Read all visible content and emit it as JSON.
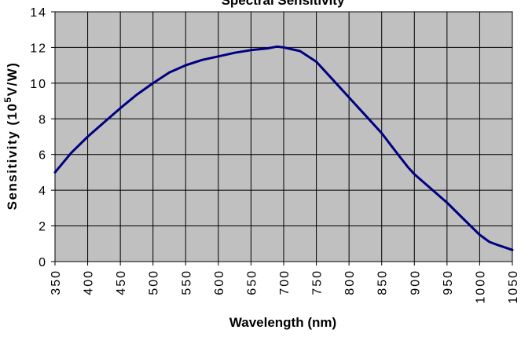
{
  "chart_data": {
    "type": "line",
    "title": "Spectral Sensitivity",
    "xlabel": "Wavelength (nm)",
    "ylabel_main": "Sensitivity (10",
    "ylabel_sup": "5",
    "ylabel_end": "V/W)",
    "xlim": [
      350,
      1050
    ],
    "ylim": [
      0,
      14
    ],
    "grid": true,
    "x_ticks": [
      "350",
      "400",
      "450",
      "500",
      "550",
      "600",
      "650",
      "700",
      "750",
      "800",
      "850",
      "900",
      "950",
      "1000",
      "1050"
    ],
    "y_ticks": [
      "0",
      "2",
      "4",
      "6",
      "8",
      "10",
      "12",
      "14"
    ],
    "colors": {
      "plot_bg": "#c0c0c0",
      "grid": "#000000",
      "line": "#000080"
    },
    "series": [
      {
        "x": [
          350,
          375,
          400,
          425,
          450,
          475,
          500,
          525,
          550,
          575,
          600,
          625,
          650,
          675,
          690,
          700,
          725,
          750,
          775,
          800,
          825,
          850,
          875,
          890,
          900,
          925,
          950,
          975,
          1000,
          1015,
          1030,
          1050
        ],
        "y": [
          5.0,
          6.1,
          7.0,
          7.8,
          8.6,
          9.35,
          10.0,
          10.6,
          11.0,
          11.3,
          11.5,
          11.7,
          11.85,
          11.95,
          12.05,
          12.0,
          11.8,
          11.2,
          10.2,
          9.2,
          8.2,
          7.2,
          6.0,
          5.3,
          4.9,
          4.1,
          3.3,
          2.4,
          1.5,
          1.1,
          0.9,
          0.65
        ]
      }
    ]
  }
}
